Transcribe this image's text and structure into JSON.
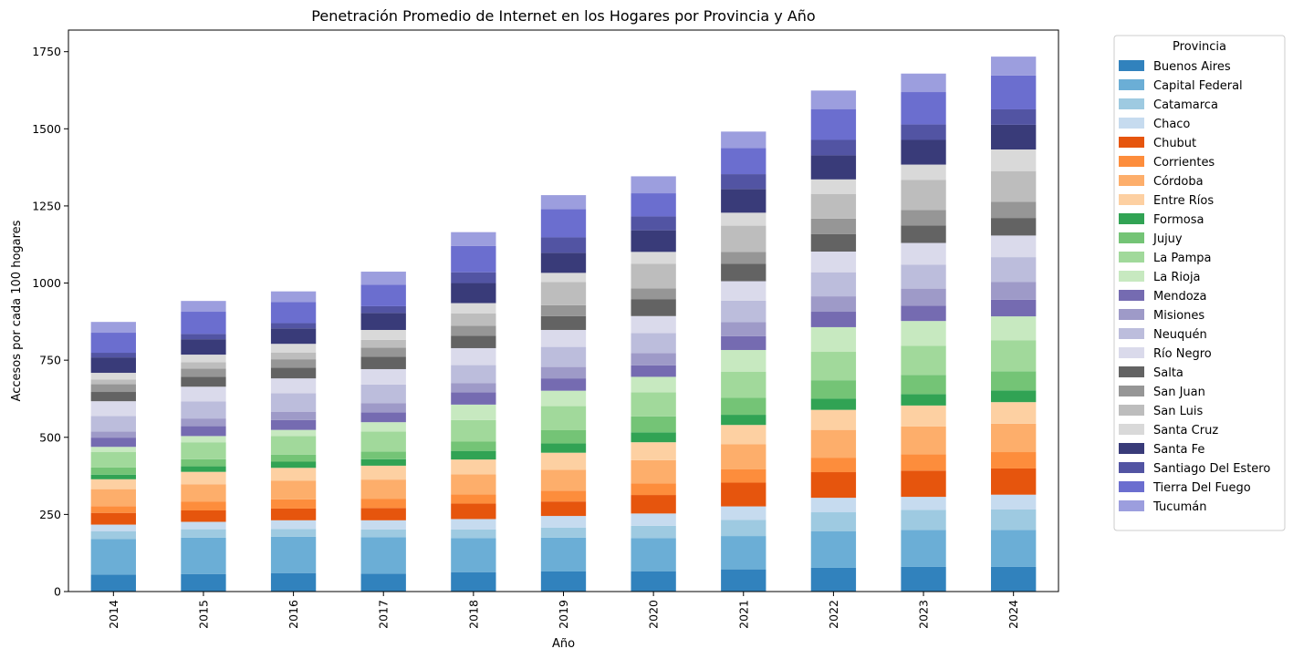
{
  "chart_data": {
    "type": "bar",
    "stacked": true,
    "title": "Penetración Promedio de Internet en los Hogares por Provincia y Año",
    "xlabel": "Año",
    "ylabel": "Accesos por cada 100 hogares",
    "ylim": [
      0,
      1820
    ],
    "yticks": [
      0,
      250,
      500,
      750,
      1000,
      1250,
      1500,
      1750
    ],
    "grid": false,
    "legend_title": "Provincia",
    "legend_position": "outside-right",
    "categories": [
      "2014",
      "2015",
      "2016",
      "2017",
      "2018",
      "2019",
      "2020",
      "2021",
      "2022",
      "2023",
      "2024"
    ],
    "series": [
      {
        "name": "Buenos Aires",
        "color": "#3182bd",
        "values": [
          55,
          57,
          60,
          58,
          63,
          65,
          66,
          72,
          77,
          80,
          80
        ]
      },
      {
        "name": "Capital Federal",
        "color": "#6baed6",
        "values": [
          115,
          118,
          118,
          118,
          110,
          110,
          107,
          108,
          118,
          120,
          120
        ]
      },
      {
        "name": "Catamarca",
        "color": "#9ecae1",
        "values": [
          25,
          27,
          25,
          25,
          28,
          32,
          40,
          52,
          62,
          65,
          66
        ]
      },
      {
        "name": "Chaco",
        "color": "#c6dbef",
        "values": [
          22,
          24,
          28,
          30,
          34,
          38,
          40,
          44,
          47,
          42,
          48
        ]
      },
      {
        "name": "Chubut",
        "color": "#e6550d",
        "values": [
          38,
          37,
          38,
          40,
          50,
          47,
          60,
          77,
          83,
          85,
          85
        ]
      },
      {
        "name": "Corrientes",
        "color": "#fd8d3c",
        "values": [
          22,
          28,
          30,
          30,
          30,
          35,
          38,
          43,
          47,
          53,
          53
        ]
      },
      {
        "name": "Córdoba",
        "color": "#fdae6b",
        "values": [
          55,
          57,
          60,
          62,
          65,
          68,
          75,
          82,
          90,
          90,
          92
        ]
      },
      {
        "name": "Entre Ríos",
        "color": "#fdd0a2",
        "values": [
          32,
          40,
          42,
          45,
          48,
          55,
          58,
          62,
          65,
          68,
          70
        ]
      },
      {
        "name": "Formosa",
        "color": "#31a354",
        "values": [
          15,
          18,
          20,
          21,
          28,
          30,
          32,
          33,
          36,
          37,
          38
        ]
      },
      {
        "name": "Jujuy",
        "color": "#74c476",
        "values": [
          23,
          23,
          23,
          25,
          30,
          43,
          52,
          55,
          60,
          62,
          62
        ]
      },
      {
        "name": "La Pampa",
        "color": "#a1d99b",
        "values": [
          50,
          55,
          60,
          65,
          70,
          78,
          78,
          85,
          92,
          95,
          100
        ]
      },
      {
        "name": "La Rioja",
        "color": "#c7e9c0",
        "values": [
          17,
          20,
          20,
          30,
          50,
          50,
          50,
          70,
          80,
          80,
          78
        ]
      },
      {
        "name": "Mendoza",
        "color": "#756bb1",
        "values": [
          30,
          32,
          32,
          32,
          40,
          40,
          37,
          45,
          50,
          50,
          54
        ]
      },
      {
        "name": "Misiones",
        "color": "#9e9ac8",
        "values": [
          20,
          25,
          27,
          30,
          30,
          37,
          40,
          45,
          50,
          55,
          58
        ]
      },
      {
        "name": "Neuquén",
        "color": "#bcbddc",
        "values": [
          50,
          55,
          60,
          60,
          58,
          65,
          65,
          70,
          78,
          78,
          80
        ]
      },
      {
        "name": "Río Negro",
        "color": "#dadaeb",
        "values": [
          48,
          48,
          48,
          50,
          55,
          55,
          55,
          63,
          67,
          70,
          70
        ]
      },
      {
        "name": "Salta",
        "color": "#636363",
        "values": [
          30,
          32,
          35,
          40,
          40,
          45,
          55,
          57,
          57,
          57,
          57
        ]
      },
      {
        "name": "San Juan",
        "color": "#969696",
        "values": [
          25,
          27,
          27,
          30,
          33,
          35,
          35,
          38,
          50,
          50,
          52
        ]
      },
      {
        "name": "San Luis",
        "color": "#bdbdbd",
        "values": [
          15,
          20,
          22,
          25,
          40,
          75,
          80,
          85,
          80,
          97,
          100
        ]
      },
      {
        "name": "Santa Cruz",
        "color": "#d9d9d9",
        "values": [
          22,
          25,
          28,
          32,
          33,
          30,
          38,
          42,
          47,
          50,
          70
        ]
      },
      {
        "name": "Santa Fe",
        "color": "#393b79",
        "values": [
          50,
          50,
          50,
          55,
          65,
          65,
          70,
          77,
          78,
          80,
          80
        ]
      },
      {
        "name": "Santiago Del Estero",
        "color": "#5254a3",
        "values": [
          15,
          17,
          17,
          22,
          35,
          50,
          45,
          48,
          50,
          50,
          50
        ]
      },
      {
        "name": "Tierra Del Fuego",
        "color": "#6b6ecf",
        "values": [
          65,
          72,
          68,
          70,
          85,
          92,
          75,
          85,
          100,
          105,
          110
        ]
      },
      {
        "name": "Tucumán",
        "color": "#9c9ede",
        "values": [
          35,
          35,
          35,
          42,
          45,
          45,
          55,
          53,
          60,
          60,
          61
        ]
      }
    ]
  }
}
